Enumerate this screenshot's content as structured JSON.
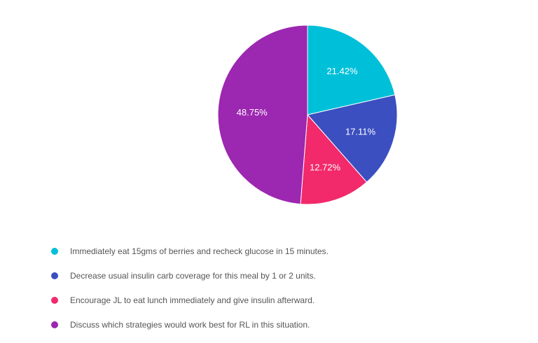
{
  "chart_data": {
    "type": "pie",
    "title": "",
    "categories": [
      "Immediately eat 15gms of berries and recheck glucose in 15 minutes.",
      "Decrease usual insulin carb coverage for this meal by 1 or 2 units.",
      "Encourage JL to eat lunch immediately and give insulin afterward.",
      "Discuss which strategies would work best for RL in this situation."
    ],
    "values": [
      21.42,
      17.11,
      12.72,
      48.75
    ],
    "value_labels": [
      "21.42%",
      "17.11%",
      "12.72%",
      "48.75%"
    ],
    "colors": [
      "#00c0d9",
      "#3b4fc0",
      "#f2296b",
      "#9c27b0"
    ],
    "legend_position": "bottom",
    "start_angle": "top, clockwise"
  }
}
